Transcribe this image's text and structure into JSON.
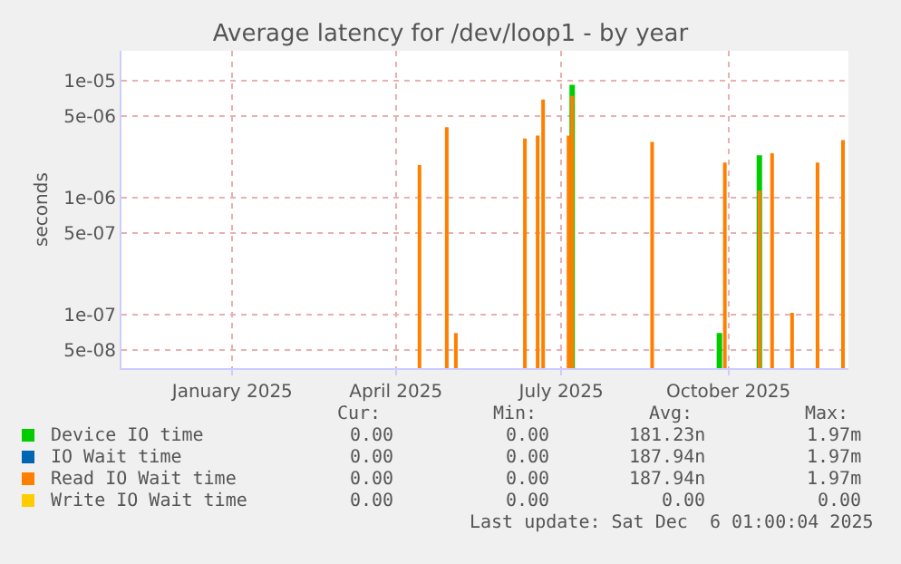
{
  "chart_data": {
    "type": "bar",
    "title": "Average latency for /dev/loop1 - by year",
    "ylabel": "seconds",
    "log": "y",
    "grid": true,
    "legend": "bottom",
    "ylim": [
      3.5e-08,
      1.8e-05
    ],
    "yticks": [
      {
        "value": 5e-08,
        "label": "5e-08"
      },
      {
        "value": 1e-07,
        "label": "1e-07"
      },
      {
        "value": 5e-07,
        "label": "5e-07"
      },
      {
        "value": 1e-06,
        "label": "1e-06"
      },
      {
        "value": 5e-06,
        "label": "5e-06"
      },
      {
        "value": 1e-05,
        "label": "1e-05"
      }
    ],
    "xlim": [
      "2024-11-01",
      "2025-12-06"
    ],
    "xticks": [
      {
        "value": "2025-01-01",
        "label": "January 2025"
      },
      {
        "value": "2025-04-01",
        "label": "April 2025"
      },
      {
        "value": "2025-07-01",
        "label": "July 2025"
      },
      {
        "value": "2025-10-01",
        "label": "October 2025"
      }
    ],
    "series": [
      {
        "name": "Device IO time",
        "color": "#00cc00",
        "x": [
          "2025-07-07",
          "2025-09-26",
          "2025-10-18"
        ],
        "values": [
          9.2e-06,
          7e-08,
          2.3e-06
        ]
      },
      {
        "name": "IO Wait time",
        "color": "#0066b3"
      },
      {
        "name": "Read IO Wait time",
        "color": "#ff8000",
        "x": [
          "2025-04-14",
          "2025-04-29",
          "2025-05-04",
          "2025-06-11",
          "2025-06-18",
          "2025-06-21",
          "2025-07-05",
          "2025-07-07",
          "2025-08-20",
          "2025-09-29",
          "2025-10-18",
          "2025-10-25",
          "2025-11-05",
          "2025-11-19",
          "2025-12-03"
        ],
        "values": [
          1.9e-06,
          4e-06,
          7e-08,
          3.2e-06,
          3.4e-06,
          6.9e-06,
          3.4e-06,
          7.4e-06,
          3e-06,
          2e-06,
          1.15e-06,
          2.4e-06,
          1.04e-07,
          2e-06,
          3.1e-06
        ]
      },
      {
        "name": "Write IO Wait time",
        "color": "#ffcc00"
      }
    ],
    "annotations": [
      "Cur:",
      "Min:",
      "Avg:",
      "Max:",
      "0.00",
      "0.00",
      "181.23n",
      "1.97m",
      "0.00",
      "0.00",
      "187.94n",
      "1.97m",
      "0.00",
      "0.00",
      "187.94n",
      "1.97m",
      "0.00",
      "0.00",
      "0.00",
      "0.00",
      "Last update: Sat Dec  6 01:00:04 2025"
    ]
  }
}
